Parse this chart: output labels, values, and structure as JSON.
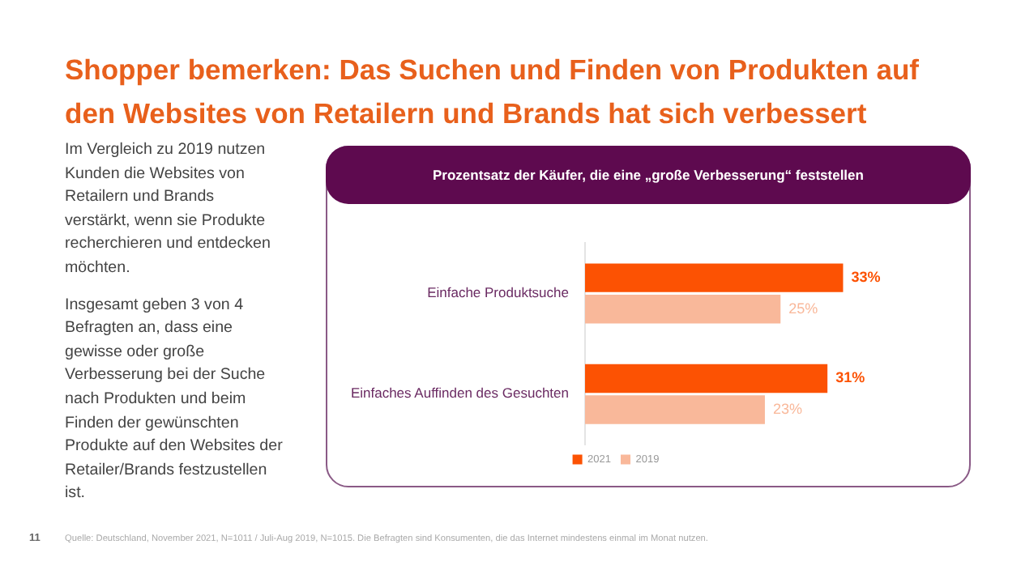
{
  "chart_data": {
    "type": "bar",
    "orientation": "horizontal",
    "title": "Shopper bemerken: Das Suchen und Finden von Produkten auf den Websites von Retailern und Brands hat sich verbessert",
    "subtitle": "Prozentsatz der Käufer, die eine „große Verbesserung“ feststellen",
    "categories": [
      "Einfache Produktsuche",
      "Einfaches Auffinden des Gesuchten"
    ],
    "series": [
      {
        "name": "2021",
        "color": "#fc5203",
        "values": [
          33,
          31
        ],
        "value_labels": [
          "33%",
          "31%"
        ]
      },
      {
        "name": "2019",
        "color": "#f9b89a",
        "values": [
          25,
          23
        ],
        "value_labels": [
          "25%",
          "23%"
        ]
      }
    ],
    "tick_labels": "y",
    "grid": false,
    "legend": "bottom",
    "annotations": [
      "Im Vergleich zu 2019 nutzen Kunden die Websites von Retailern und Brands verstärkt, wenn sie Produkte recherchieren und entdecken möchten.",
      "Insgesamt geben 3 von 4 Befragten an, dass eine gewisse oder große Verbesserung bei der Suche nach Produkten und beim Finden der gewünschten Produkte auf den Websites der Retailer/Brands festzustellen ist.",
      "Quelle: Deutschland, November 2021, N=1011 / Juli-Aug 2019, N=1015. Die Befragten sind Konsumenten, die das Internet mindestens einmal im Monat nutzen.",
      "11"
    ]
  }
}
